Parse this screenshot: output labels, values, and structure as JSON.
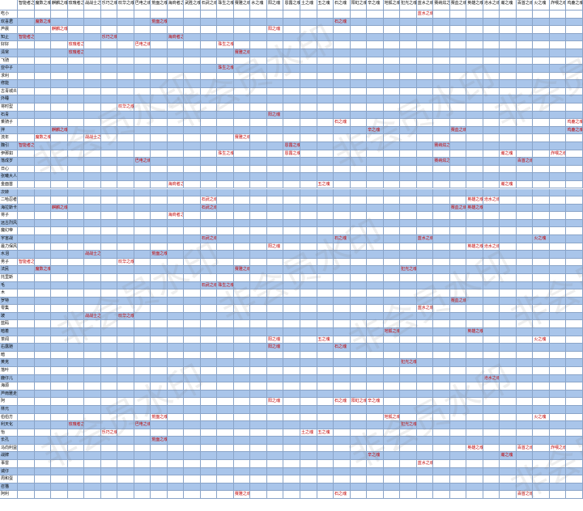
{
  "table": {
    "headers": [
      "智能者之魂",
      "魔数之魂",
      "麒麟之魂",
      "玫瑰者之魂",
      "战战士之魂",
      "乐巧之魂",
      "叹华之魂",
      "巴电之魂",
      "荒面之魂",
      "海商者之魂",
      "武胜之魂",
      "石武之魂",
      "珠生之魂",
      "赛雅之魂",
      "水之魂",
      "阳之魂",
      "恩露之魂",
      "土之魂",
      "五之魂",
      "石之魂",
      "阳虹之魂",
      "辛之魂",
      "地狐之魂",
      "犯光之魂",
      "蓝水之魂",
      "赛纳炫之魂",
      "赛血之魂",
      "英雄之魂",
      "沧水之魂",
      "瀚之魂",
      "百首之魂",
      "火之魂",
      "炸喂之魂",
      "鸡鹿之魂"
    ],
    "rows": [
      {
        "label": "吃小",
        "cells": [
          null,
          null,
          null,
          null,
          null,
          null,
          null,
          null,
          null,
          null,
          null,
          null,
          null,
          null,
          null,
          null,
          null,
          null,
          null,
          null,
          null,
          null,
          null,
          null,
          "蓝水之魂"
        ]
      },
      {
        "label": "欢喜君",
        "cells": [
          null,
          "魔数之魂",
          null,
          null,
          null,
          null,
          null,
          null,
          "荒面之魂",
          null,
          null,
          null,
          null,
          null,
          null,
          null,
          null,
          null,
          null,
          "石之魂"
        ]
      },
      {
        "label": "芦晨",
        "cells": [
          null,
          null,
          "麒麟之魂",
          null,
          null,
          null,
          null,
          null,
          null,
          null,
          null,
          null,
          null,
          null,
          null,
          "阳之魂"
        ]
      },
      {
        "label": "知止",
        "cells": [
          "智能者之魂",
          null,
          null,
          null,
          null,
          "乐巧之魂",
          null,
          null,
          null,
          "海商者之魂"
        ]
      },
      {
        "label": "好好",
        "cells": [
          null,
          null,
          null,
          "玫瑰者之魂",
          null,
          null,
          null,
          "巴电之魂",
          null,
          null,
          null,
          null,
          "珠生之魂"
        ]
      },
      {
        "label": "清常",
        "cells": [
          null,
          null,
          null,
          "玫瑰者之魂",
          null,
          null,
          null,
          null,
          null,
          null,
          null,
          null,
          null,
          "赛雅之魂"
        ]
      },
      {
        "label": "飞骑",
        "cells": []
      },
      {
        "label": "亚中子",
        "cells": [
          null,
          null,
          null,
          null,
          null,
          null,
          null,
          null,
          null,
          null,
          null,
          null,
          "珠生之魂"
        ]
      },
      {
        "label": "求利",
        "cells": []
      },
      {
        "label": "修能",
        "cells": []
      },
      {
        "label": "古青城炎",
        "cells": []
      },
      {
        "label": "外睡",
        "cells": []
      },
      {
        "label": "将时型",
        "cells": [
          null,
          null,
          null,
          null,
          null,
          null,
          "叹华之魂"
        ]
      },
      {
        "label": "石青",
        "cells": [
          null,
          null,
          null,
          null,
          null,
          null,
          null,
          null,
          null,
          null,
          null,
          null,
          null,
          null,
          null,
          "阳之魂"
        ]
      },
      {
        "label": "乘骑子",
        "cells": [
          null,
          null,
          null,
          null,
          null,
          null,
          null,
          null,
          null,
          null,
          null,
          null,
          null,
          null,
          null,
          null,
          null,
          null,
          null,
          "石之魂",
          null,
          null,
          null,
          null,
          null,
          null,
          null,
          null,
          null,
          null,
          null,
          null,
          null,
          "鸡鹿之魂"
        ]
      },
      {
        "label": "拌",
        "cells": [
          null,
          null,
          "麒麟之魂",
          null,
          null,
          null,
          null,
          null,
          null,
          null,
          null,
          null,
          null,
          null,
          null,
          null,
          null,
          null,
          null,
          null,
          null,
          "辛之魂",
          null,
          null,
          null,
          null,
          "赛血之魂",
          null,
          null,
          null,
          null,
          null,
          null,
          "鸡鹿之魂"
        ]
      },
      {
        "label": "流年",
        "cells": [
          null,
          "魔数之魂",
          null,
          null,
          "战战士之魂",
          null,
          null,
          null,
          null,
          null,
          null,
          null,
          null,
          "赛雅之魂"
        ]
      },
      {
        "label": "魏引",
        "cells": [
          "智能者之魂",
          null,
          null,
          null,
          null,
          null,
          null,
          null,
          null,
          null,
          null,
          null,
          null,
          null,
          null,
          null,
          "恩露之魂",
          null,
          null,
          null,
          null,
          null,
          null,
          null,
          null,
          "赛纳炫之魂"
        ]
      },
      {
        "label": "伊那如",
        "cells": [
          null,
          null,
          null,
          null,
          null,
          null,
          null,
          null,
          null,
          null,
          null,
          null,
          "珠生之魂",
          null,
          null,
          null,
          "恩露之魂",
          null,
          null,
          null,
          null,
          null,
          null,
          null,
          null,
          null,
          null,
          null,
          null,
          "瀚之魂",
          null,
          null,
          "炸喂之魂"
        ]
      },
      {
        "label": "落成岁",
        "cells": [
          null,
          null,
          null,
          null,
          null,
          null,
          null,
          "巴电之魂",
          null,
          null,
          null,
          null,
          null,
          null,
          null,
          null,
          null,
          null,
          null,
          null,
          null,
          null,
          null,
          null,
          null,
          "赛纳炫之魂",
          null,
          null,
          null,
          null,
          "百首之魂"
        ]
      },
      {
        "label": "日心",
        "cells": []
      },
      {
        "label": "张曦大人",
        "cells": []
      },
      {
        "label": "金面首",
        "cells": [
          null,
          null,
          null,
          null,
          null,
          null,
          null,
          null,
          null,
          "海商者之魂",
          null,
          null,
          null,
          null,
          null,
          null,
          null,
          null,
          "五之魂",
          null,
          null,
          null,
          null,
          null,
          null,
          null,
          null,
          null,
          null,
          "瀚之魂"
        ]
      },
      {
        "label": "次转",
        "cells": []
      },
      {
        "label": "二哈忍者",
        "cells": [
          null,
          null,
          null,
          null,
          null,
          null,
          null,
          null,
          null,
          null,
          null,
          "石武之魂",
          null,
          null,
          null,
          null,
          null,
          null,
          null,
          null,
          null,
          null,
          null,
          null,
          null,
          null,
          null,
          "英雄之魂",
          "沧水之魂"
        ]
      },
      {
        "label": "海拉斯卡",
        "cells": [
          null,
          null,
          "麒麟之魂",
          null,
          null,
          null,
          null,
          null,
          null,
          null,
          null,
          "石武之魂",
          null,
          null,
          null,
          null,
          null,
          null,
          null,
          null,
          null,
          null,
          null,
          null,
          null,
          null,
          "赛血之魂",
          "英雄之魂"
        ]
      },
      {
        "label": "将子",
        "cells": [
          null,
          null,
          null,
          null,
          null,
          null,
          null,
          null,
          null,
          "海商者之魂"
        ]
      },
      {
        "label": "远古烈风",
        "cells": []
      },
      {
        "label": "魔幻帝",
        "cells": []
      },
      {
        "label": "宇宙战",
        "cells": [
          null,
          null,
          null,
          null,
          null,
          null,
          null,
          null,
          null,
          null,
          null,
          "石武之魂",
          null,
          null,
          null,
          null,
          null,
          null,
          null,
          "石之魂",
          null,
          null,
          null,
          null,
          "蓝水之魂",
          null,
          null,
          null,
          null,
          null,
          null,
          "火之魂"
        ]
      },
      {
        "label": "最力保风",
        "cells": [
          null,
          null,
          null,
          null,
          null,
          null,
          null,
          null,
          null,
          null,
          null,
          null,
          null,
          null,
          null,
          "阳之魂",
          null,
          null,
          null,
          null,
          null,
          null,
          null,
          null,
          null,
          null,
          null,
          "英雄之魂",
          "沧水之魂"
        ]
      },
      {
        "label": "水泪",
        "cells": [
          null,
          null,
          null,
          null,
          "战战士之魂",
          null,
          null,
          null,
          "荒面之魂"
        ]
      },
      {
        "label": "男子",
        "cells": [
          "智能者之魂",
          null,
          null,
          null,
          null,
          null,
          "叹华之魂"
        ]
      },
      {
        "label": "法民",
        "cells": [
          null,
          "魔数之魂",
          null,
          null,
          null,
          null,
          null,
          null,
          null,
          null,
          null,
          null,
          null,
          "赛雅之魂",
          null,
          null,
          null,
          null,
          null,
          null,
          null,
          null,
          null,
          "犯光之魂"
        ]
      },
      {
        "label": "托里斯",
        "cells": []
      },
      {
        "label": "毛",
        "cells": [
          null,
          null,
          null,
          null,
          null,
          null,
          null,
          null,
          null,
          null,
          null,
          "石武之魂",
          "珠生之魂"
        ]
      },
      {
        "label": "木",
        "cells": []
      },
      {
        "label": "罗特",
        "cells": [
          null,
          null,
          null,
          null,
          null,
          null,
          null,
          null,
          null,
          null,
          null,
          null,
          null,
          null,
          null,
          null,
          null,
          null,
          null,
          null,
          null,
          null,
          null,
          null,
          null,
          null,
          "赛血之魂"
        ]
      },
      {
        "label": "零集",
        "cells": [
          null,
          null,
          null,
          null,
          null,
          null,
          null,
          null,
          null,
          null,
          null,
          null,
          null,
          null,
          null,
          null,
          null,
          null,
          null,
          null,
          null,
          null,
          null,
          null,
          "蓝水之魂"
        ]
      },
      {
        "label": "玻",
        "cells": [
          null,
          null,
          null,
          null,
          "战战士之魂",
          null,
          "叹华之魂"
        ]
      },
      {
        "label": "蓝码",
        "cells": []
      },
      {
        "label": "暗着",
        "cells": [
          null,
          null,
          null,
          null,
          null,
          null,
          null,
          null,
          null,
          null,
          null,
          null,
          null,
          null,
          null,
          null,
          null,
          null,
          null,
          null,
          null,
          null,
          "地狐之魂",
          null,
          null,
          null,
          null,
          "英雄之魂"
        ]
      },
      {
        "label": "茶闻",
        "cells": [
          null,
          null,
          null,
          null,
          null,
          null,
          null,
          null,
          null,
          null,
          null,
          null,
          null,
          null,
          null,
          "阳之魂",
          null,
          null,
          "五之魂",
          null,
          null,
          null,
          null,
          null,
          null,
          null,
          null,
          null,
          null,
          null,
          null,
          "火之魂"
        ]
      },
      {
        "label": "右露驰",
        "cells": [
          null,
          null,
          null,
          null,
          null,
          null,
          null,
          null,
          null,
          null,
          null,
          null,
          null,
          null,
          null,
          "阳之魂",
          null,
          null,
          null,
          "石之魂"
        ]
      },
      {
        "label": "暗",
        "cells": []
      },
      {
        "label": "黄克",
        "cells": [
          null,
          null,
          null,
          null,
          null,
          null,
          null,
          null,
          null,
          null,
          null,
          null,
          null,
          null,
          null,
          null,
          null,
          null,
          null,
          null,
          null,
          null,
          null,
          "犯光之魂"
        ]
      },
      {
        "label": "落叶",
        "cells": []
      },
      {
        "label": "鹿仔儿",
        "cells": [
          null,
          null,
          null,
          null,
          null,
          null,
          null,
          null,
          null,
          null,
          null,
          null,
          null,
          null,
          null,
          null,
          null,
          null,
          null,
          null,
          null,
          null,
          null,
          null,
          null,
          null,
          null,
          null,
          "沧水之魂"
        ]
      },
      {
        "label": "海源",
        "cells": []
      },
      {
        "label": "芦雨雅走",
        "cells": []
      },
      {
        "label": "阿",
        "cells": [
          null,
          null,
          null,
          null,
          null,
          null,
          null,
          null,
          null,
          null,
          null,
          null,
          null,
          null,
          null,
          "阳之魂",
          null,
          null,
          null,
          "石之魂",
          "阳虹之魂",
          "辛之魂"
        ]
      },
      {
        "label": "林元",
        "cells": []
      },
      {
        "label": "伯伯方",
        "cells": [
          null,
          null,
          null,
          null,
          null,
          null,
          null,
          null,
          "荒面之魂",
          null,
          null,
          null,
          null,
          null,
          null,
          null,
          null,
          null,
          null,
          null,
          null,
          null,
          "地狐之魂",
          null,
          null,
          null,
          null,
          null,
          null,
          null,
          null,
          "火之魂"
        ]
      },
      {
        "label": "利天化",
        "cells": [
          null,
          null,
          null,
          "玫瑰者之魂",
          null,
          null,
          null,
          "巴电之魂",
          null,
          null,
          null,
          null,
          null,
          null,
          null,
          null,
          null,
          null,
          null,
          null,
          null,
          null,
          null,
          "犯光之魂"
        ]
      },
      {
        "label": "怡",
        "cells": [
          null,
          null,
          null,
          null,
          null,
          "乐巧之魂",
          null,
          null,
          null,
          null,
          null,
          null,
          null,
          null,
          null,
          null,
          null,
          "土之魂",
          "五之魂"
        ]
      },
      {
        "label": "长孔",
        "cells": [
          null,
          null,
          null,
          null,
          null,
          null,
          null,
          null,
          "荒面之魂"
        ]
      },
      {
        "label": "马向利益",
        "cells": [
          null,
          null,
          null,
          null,
          null,
          null,
          null,
          null,
          null,
          null,
          null,
          null,
          null,
          null,
          null,
          null,
          null,
          null,
          null,
          null,
          null,
          null,
          null,
          null,
          null,
          null,
          null,
          "英雄之魂",
          null,
          null,
          "百首之魂",
          null,
          "炸喂之魂"
        ]
      },
      {
        "label": "战牌",
        "cells": [
          null,
          null,
          null,
          null,
          null,
          null,
          null,
          null,
          null,
          null,
          null,
          null,
          null,
          null,
          null,
          null,
          null,
          null,
          null,
          null,
          null,
          "辛之魂",
          null,
          null,
          null,
          null,
          null,
          null,
          null,
          "瀚之魂"
        ]
      },
      {
        "label": "事雷",
        "cells": [
          null,
          null,
          null,
          null,
          null,
          null,
          null,
          null,
          null,
          null,
          null,
          null,
          null,
          null,
          null,
          null,
          null,
          null,
          null,
          null,
          null,
          null,
          null,
          null,
          "蓝水之魂"
        ]
      },
      {
        "label": "诚仔",
        "cells": []
      },
      {
        "label": "周和蛋",
        "cells": []
      },
      {
        "label": "召猫",
        "cells": []
      },
      {
        "label": "阿利",
        "cells": [
          null,
          null,
          null,
          null,
          null,
          null,
          null,
          null,
          null,
          null,
          null,
          null,
          null,
          "赛雅之魂",
          null,
          null,
          null,
          null,
          null,
          "石之魂",
          null,
          null,
          null,
          null,
          null,
          null,
          null,
          null,
          null,
          null,
          "百首之魂"
        ]
      }
    ]
  },
  "watermark": "非会员水印"
}
